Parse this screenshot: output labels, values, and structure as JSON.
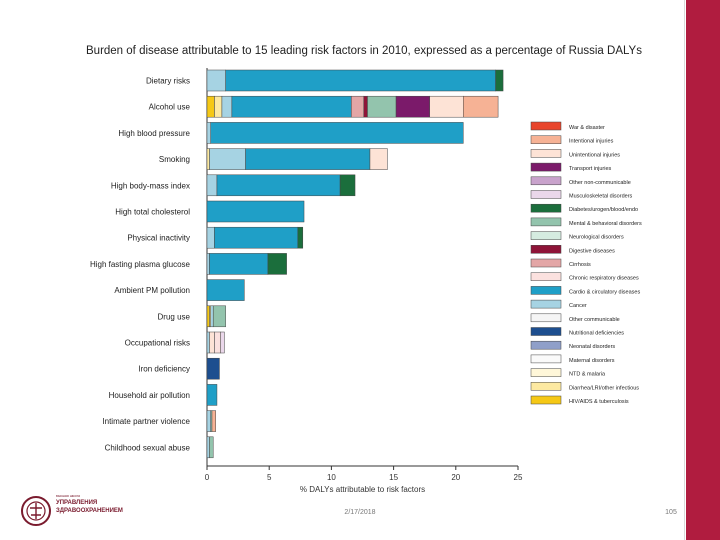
{
  "chart_data": {
    "type": "bar",
    "stacked": true,
    "orientation": "horizontal",
    "title": "Burden of disease attributable to 15 leading risk factors in 2010, expressed as a percentage of Russia DALYs",
    "xlabel": "% DALYs attributable to risk factors",
    "ylabel": "",
    "xlim": [
      0,
      25
    ],
    "xticks": [
      0,
      5,
      10,
      15,
      20,
      25
    ],
    "legend_position": "right",
    "categories": [
      "Dietary risks",
      "Alcohol use",
      "High blood pressure",
      "Smoking",
      "High body-mass index",
      "High total cholesterol",
      "Physical inactivity",
      "High fasting plasma glucose",
      "Ambient PM pollution",
      "Drug use",
      "Occupational risks",
      "Iron deficiency",
      "Household air pollution",
      "Intimate partner violence",
      "Childhood sexual abuse"
    ],
    "series": [
      {
        "name": "War & disaster",
        "color": "#e8452c",
        "values": [
          0,
          0,
          0,
          0,
          0,
          0,
          0,
          0,
          0,
          0,
          0,
          0,
          0,
          0,
          0
        ]
      },
      {
        "name": "Intentional injuries",
        "color": "#f6b295",
        "values": [
          0,
          2.8,
          0,
          0,
          0,
          0,
          0,
          0,
          0,
          0,
          0,
          0,
          0,
          0.3,
          0
        ]
      },
      {
        "name": "Unintentional injuries",
        "color": "#fde3d6",
        "values": [
          0,
          2.7,
          0,
          1.4,
          0,
          0,
          0,
          0,
          0,
          0,
          0.4,
          0,
          0,
          0,
          0
        ]
      },
      {
        "name": "Transport injuries",
        "color": "#7b1a6a",
        "values": [
          0,
          2.7,
          0,
          0,
          0,
          0,
          0,
          0,
          0,
          0,
          0,
          0,
          0,
          0,
          0
        ]
      },
      {
        "name": "Other non-communicable",
        "color": "#c9a3cc",
        "values": [
          0,
          0,
          0,
          0,
          0,
          0,
          0,
          0,
          0,
          0,
          0,
          0,
          0,
          0,
          0
        ]
      },
      {
        "name": "Musculoskeletal disorders",
        "color": "#ead7ea",
        "values": [
          0,
          0,
          0,
          0,
          0,
          0,
          0,
          0,
          0,
          0,
          0.3,
          0,
          0,
          0,
          0
        ]
      },
      {
        "name": "Diabetes/urogen/blood/endo",
        "color": "#1b6e3c",
        "values": [
          0.6,
          0,
          0,
          0,
          1.2,
          0,
          0.4,
          1.5,
          0,
          0,
          0,
          0,
          0,
          0,
          0
        ]
      },
      {
        "name": "Mental & behavioral disorders",
        "color": "#93c4ad",
        "values": [
          0,
          2.3,
          0,
          0,
          0,
          0,
          0,
          0,
          0,
          1.0,
          0,
          0,
          0,
          0.1,
          0.3
        ]
      },
      {
        "name": "Neurological disorders",
        "color": "#d5ebe0",
        "values": [
          0,
          0,
          0,
          0,
          0,
          0,
          0,
          0,
          0,
          0,
          0,
          0,
          0,
          0,
          0
        ]
      },
      {
        "name": "Digestive diseases",
        "color": "#8e1438",
        "values": [
          0,
          0.3,
          0,
          0,
          0,
          0,
          0,
          0,
          0,
          0,
          0,
          0,
          0,
          0,
          0
        ]
      },
      {
        "name": "Cirrhosis",
        "color": "#e3a6a6",
        "values": [
          0,
          1.0,
          0,
          0,
          0,
          0,
          0,
          0,
          0,
          0,
          0,
          0,
          0,
          0,
          0
        ]
      },
      {
        "name": "Chronic respiratory diseases",
        "color": "#fbe1df",
        "values": [
          0,
          0,
          0,
          0,
          0,
          0,
          0,
          0,
          0,
          0,
          0.5,
          0,
          0,
          0,
          0
        ]
      },
      {
        "name": "Cardio & circulatory diseases",
        "color": "#1f9fc7",
        "values": [
          21.7,
          9.6,
          20.3,
          10.0,
          9.9,
          7.8,
          6.7,
          4.7,
          3.0,
          0,
          0,
          0,
          0.8,
          0,
          0
        ]
      },
      {
        "name": "Cancer",
        "color": "#a6d3e3",
        "values": [
          1.5,
          0.8,
          0.3,
          2.9,
          0.8,
          0,
          0.6,
          0.2,
          0,
          0.2,
          0.2,
          0,
          0,
          0.3,
          0.2
        ]
      },
      {
        "name": "Other communicable",
        "color": "#f5f5f5",
        "values": [
          0,
          0,
          0,
          0,
          0,
          0,
          0,
          0,
          0,
          0,
          0,
          0,
          0,
          0,
          0
        ]
      },
      {
        "name": "Nutritional deficiencies",
        "color": "#1d4e8f",
        "values": [
          0,
          0,
          0,
          0,
          0,
          0,
          0,
          0,
          0,
          0,
          0,
          1.0,
          0,
          0,
          0
        ]
      },
      {
        "name": "Neonatal disorders",
        "color": "#8f9fc9",
        "values": [
          0,
          0,
          0,
          0,
          0,
          0,
          0,
          0,
          0,
          0,
          0,
          0,
          0,
          0,
          0
        ]
      },
      {
        "name": "Maternal disorders",
        "color": "#fafafa",
        "values": [
          0,
          0,
          0,
          0,
          0,
          0,
          0,
          0,
          0,
          0,
          0,
          0,
          0,
          0,
          0
        ]
      },
      {
        "name": "NTD & malaria",
        "color": "#fff7d9",
        "values": [
          0,
          0,
          0,
          0,
          0,
          0,
          0,
          0,
          0,
          0,
          0,
          0,
          0,
          0,
          0
        ]
      },
      {
        "name": "Diarrhea/LRI/other infectious",
        "color": "#fde9a1",
        "values": [
          0,
          0.6,
          0,
          0.2,
          0,
          0,
          0,
          0,
          0,
          0.1,
          0,
          0,
          0,
          0,
          0
        ]
      },
      {
        "name": "HIV/AIDS & tuberculosis",
        "color": "#f5c816",
        "values": [
          0,
          0.6,
          0,
          0,
          0,
          0,
          0,
          0,
          0,
          0.2,
          0,
          0,
          0,
          0,
          0
        ]
      }
    ]
  },
  "footer": {
    "date": "2/17/2018",
    "page": "105"
  },
  "logo": {
    "line1": "высшая школа",
    "line2": "УПРАВЛЕНИЯ",
    "line3": "ЗДРАВООХРАНЕНИЕМ"
  }
}
